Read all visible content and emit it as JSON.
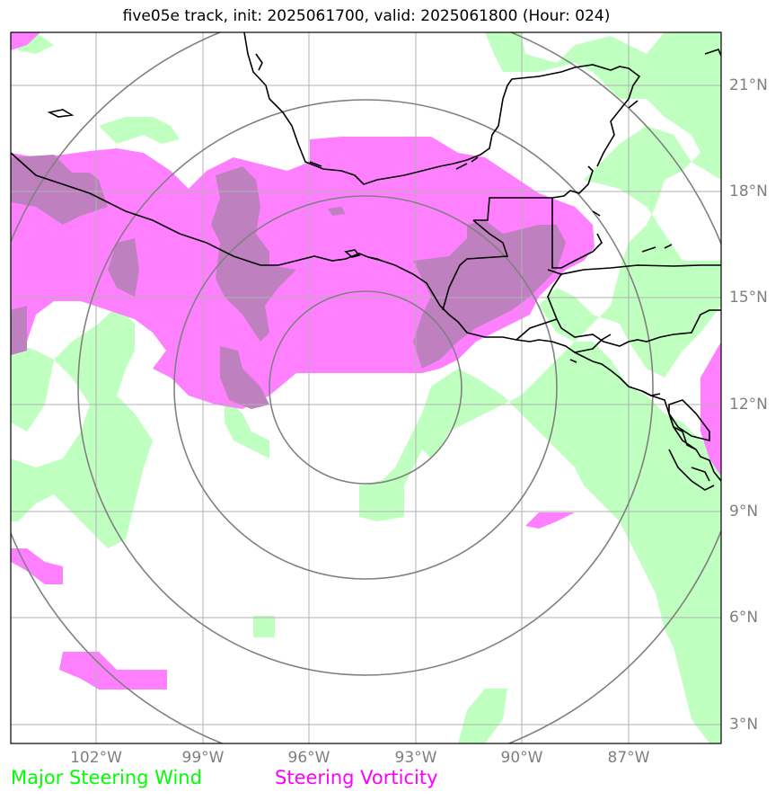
{
  "title": "five05e track, init: 2025061700, valid: 2025061800 (Hour: 024)",
  "axes": {
    "lon_ticks": [
      "102°W",
      "99°W",
      "96°W",
      "93°W",
      "90°W",
      "87°W"
    ],
    "lat_ticks": [
      "21°N",
      "18°N",
      "15°N",
      "12°N",
      "9°N",
      "6°N",
      "3°N"
    ]
  },
  "legend": {
    "wind": {
      "label": "Major Steering Wind",
      "color": "#00ff00"
    },
    "vorticity": {
      "label": "Steering Vorticity",
      "color": "#ff00ff"
    }
  },
  "colors": {
    "wind_fill": "#bfffbf",
    "vorticity_fill": "#ff80ff",
    "overlap_fill": "#bf80bf",
    "range_rings": "#808080",
    "gridlines": "#b0b0b0",
    "coastline": "#000000"
  }
}
